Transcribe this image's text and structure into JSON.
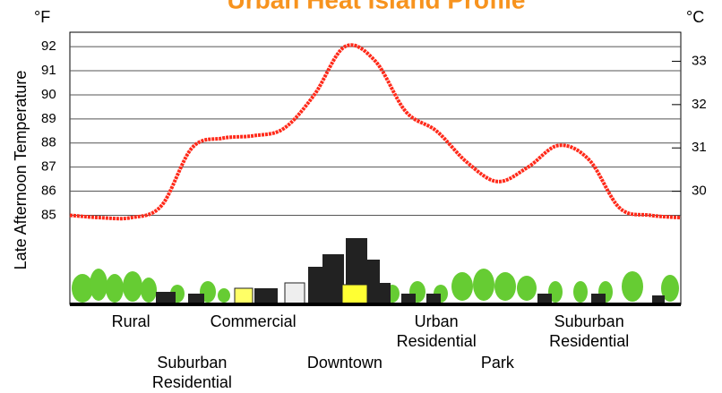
{
  "chart_data": {
    "type": "line",
    "title": "Urban Heat Island Profile",
    "ylabel": "Late Afternoon Temperature",
    "yunit": "°F",
    "y2unit": "°C",
    "categories": [
      null,
      null,
      "Rural",
      null,
      "Suburban Residential",
      null,
      "Commercial",
      null,
      null,
      "Downtown",
      null,
      null,
      "Urban Residential",
      null,
      "Park",
      null,
      null,
      "Suburban Residential",
      null,
      null,
      null
    ],
    "series": [
      {
        "color": "#ff2a1a",
        "values": [
          85.0,
          84.9,
          84.9,
          85.4,
          87.8,
          88.2,
          88.3,
          88.6,
          90.0,
          92.0,
          91.4,
          89.3,
          88.5,
          87.2,
          86.4,
          87.0,
          87.9,
          87.3,
          85.3,
          85.0,
          84.9
        ]
      }
    ],
    "ylim": [
      81.3,
      92.6
    ],
    "yticks": [
      85,
      86,
      87,
      88,
      89,
      90,
      91,
      92
    ],
    "y2lim": [
      27.39,
      33.67
    ],
    "y2ticks": [
      30,
      31,
      32,
      33
    ],
    "grid": true
  }
}
